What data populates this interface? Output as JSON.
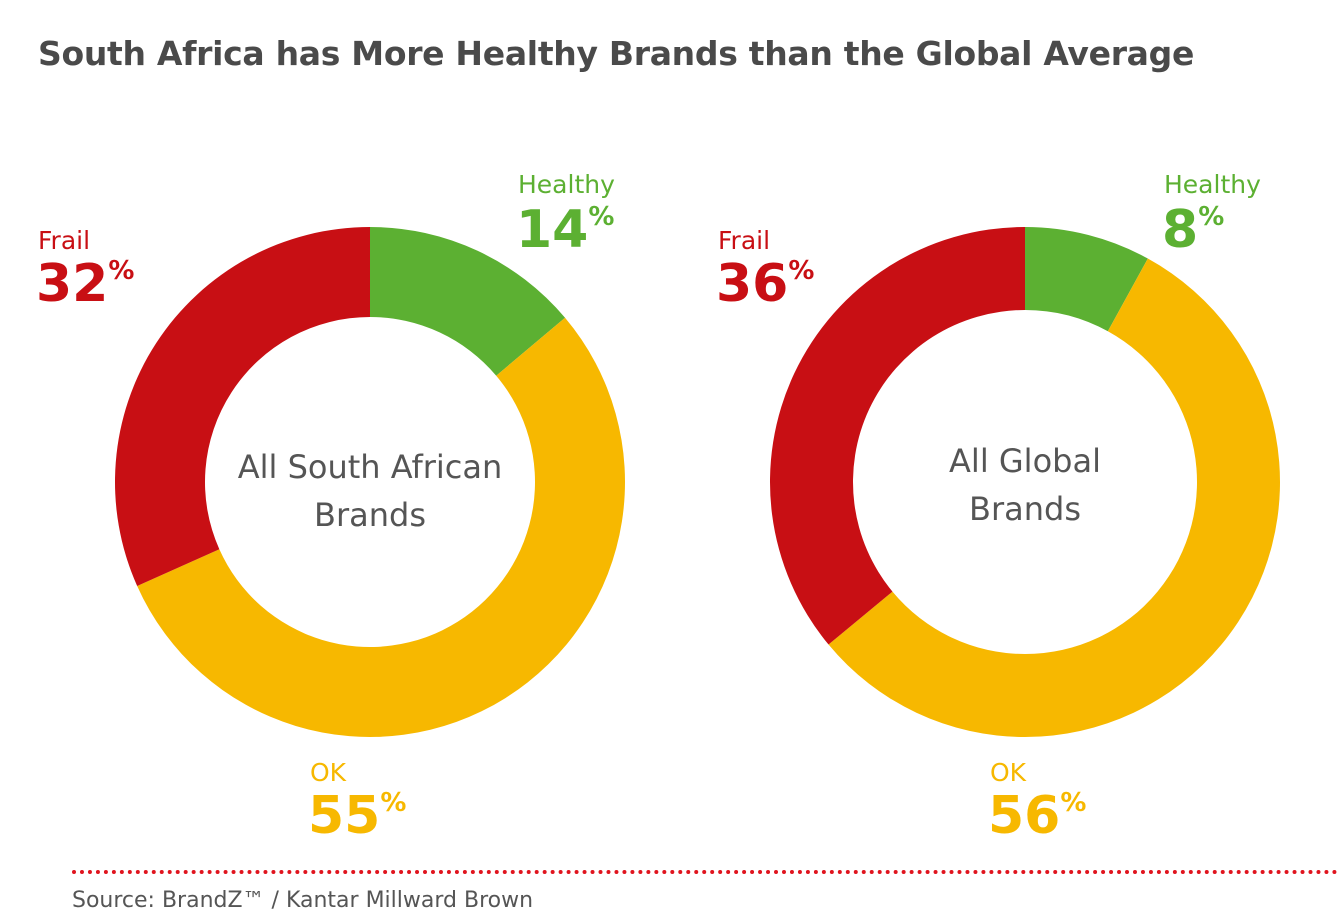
{
  "title": "South Africa has More Healthy Brands than the Global Average",
  "source": "Source: BrandZ™ / Kantar Millward Brown",
  "colors": {
    "healthy": "#5cb032",
    "ok": "#f7b800",
    "frail": "#c80f14",
    "title": "#4a4a4a",
    "divider": "#e0141e"
  },
  "chart_data": [
    {
      "type": "pie",
      "variant": "donut",
      "title": "",
      "center_label": [
        "All South African",
        "Brands"
      ],
      "slices": [
        {
          "label": "Healthy",
          "value": 14,
          "display": "14",
          "unit": "%"
        },
        {
          "label": "OK",
          "value": 55,
          "display": "55",
          "unit": "%"
        },
        {
          "label": "Frail",
          "value": 32,
          "display": "32",
          "unit": "%"
        }
      ]
    },
    {
      "type": "pie",
      "variant": "donut",
      "title": "",
      "center_label": [
        "All Global",
        "Brands"
      ],
      "slices": [
        {
          "label": "Healthy",
          "value": 8,
          "display": "8",
          "unit": "%"
        },
        {
          "label": "OK",
          "value": 56,
          "display": "56",
          "unit": "%"
        },
        {
          "label": "Frail",
          "value": 36,
          "display": "36",
          "unit": "%"
        }
      ]
    }
  ]
}
